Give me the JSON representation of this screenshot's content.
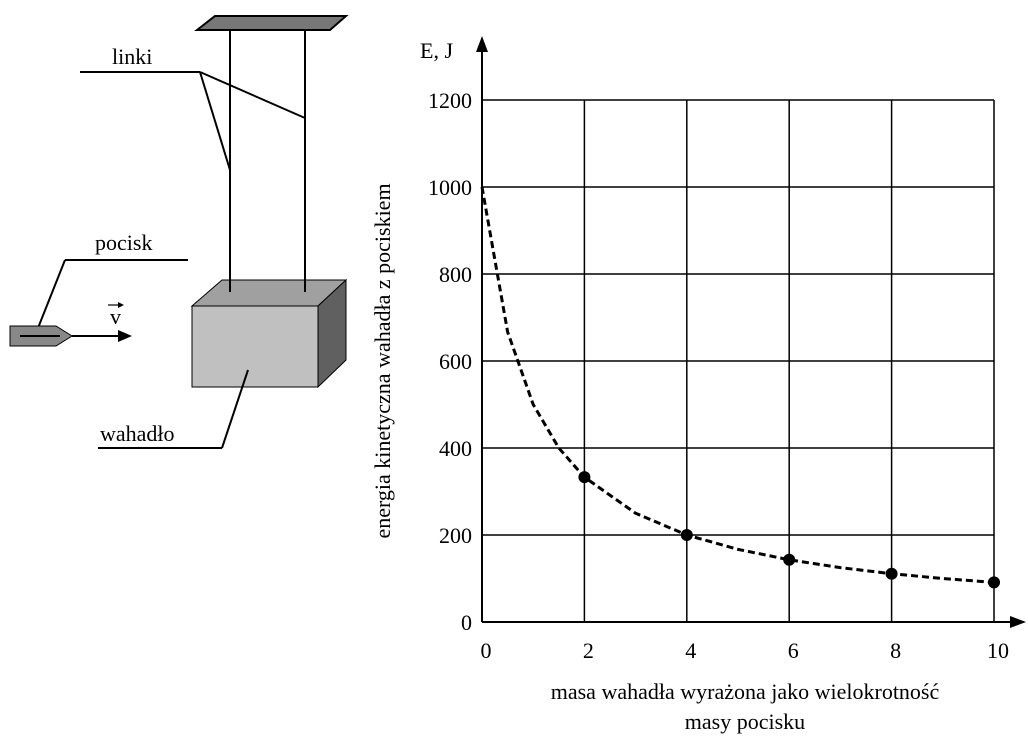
{
  "chart_data": {
    "type": "scatter",
    "y_axis_label": "E, J",
    "ylabel": "energia kinetyczna wahadła z pociskiem",
    "xlabel": [
      "masa wahadła wyrażona jako wielokrotność",
      "masy pocisku"
    ],
    "xlim": [
      0,
      10
    ],
    "ylim": [
      0,
      1200
    ],
    "xticks": [
      0,
      2,
      4,
      6,
      8,
      10
    ],
    "yticks": [
      0,
      200,
      400,
      600,
      800,
      1000,
      1200
    ],
    "grid": true,
    "series": [
      {
        "mode": "dashed-line",
        "color": "#000000",
        "x": [
          0,
          0.5,
          1,
          1.5,
          2,
          3,
          4,
          5,
          6,
          7,
          8,
          9,
          10
        ],
        "values": [
          1000,
          667,
          500,
          400,
          333,
          250,
          200,
          167,
          143,
          125,
          111,
          100,
          91
        ]
      },
      {
        "mode": "markers",
        "color": "#000000",
        "x": [
          2,
          4,
          6,
          8,
          10
        ],
        "values": [
          333,
          200,
          143,
          111,
          91
        ]
      }
    ]
  },
  "diagram": {
    "strings": "linki",
    "bullet": "pocisk",
    "velocity": "v",
    "pendulum": "wahadło"
  }
}
